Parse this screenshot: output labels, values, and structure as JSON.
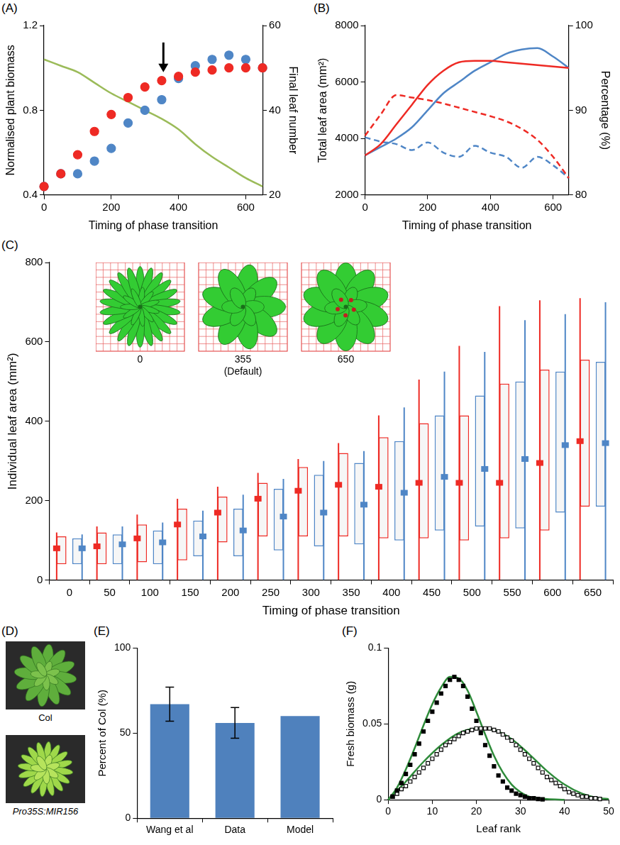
{
  "chart_data": [
    {
      "panel": "(A)",
      "type": "scatter",
      "x_label": "Timing of phase transition",
      "y_label": "Normalised plant biomass",
      "y2_label": "Final leaf number",
      "xlim": [
        0,
        650
      ],
      "xticks": [
        0,
        200,
        400,
        600
      ],
      "ylim": [
        0.4,
        1.2
      ],
      "yticks": [
        0.4,
        0.8,
        1.2
      ],
      "y2lim": [
        20,
        60
      ],
      "y2ticks": [
        20,
        40,
        60
      ],
      "grid": false,
      "x": [
        0,
        50,
        100,
        150,
        200,
        250,
        300,
        350,
        400,
        450,
        500,
        550,
        600,
        650
      ],
      "series": [
        {
          "color": "#ee2a24",
          "marker": "circle",
          "values": [
            0.44,
            0.5,
            0.59,
            0.7,
            0.78,
            0.86,
            0.91,
            0.94,
            0.96,
            0.98,
            0.99,
            1.0,
            1.0,
            1.0
          ]
        },
        {
          "color": "#4f86c6",
          "marker": "circle",
          "values": [
            0.44,
            0.5,
            0.5,
            0.56,
            0.62,
            0.74,
            0.8,
            0.85,
            0.95,
            1.01,
            1.04,
            1.06,
            1.04,
            1.0
          ]
        },
        {
          "type": "line",
          "axis": "y2",
          "color": "#9bbb59",
          "line_style": "solid",
          "values": [
            52,
            50.5,
            49,
            46.5,
            44,
            42,
            40,
            38,
            35.5,
            32,
            29,
            26.5,
            24,
            22
          ]
        }
      ],
      "arrow": {
        "x": 355,
        "y_from": 1.12,
        "y_to": 0.98
      }
    },
    {
      "panel": "(B)",
      "type": "line",
      "x_label": "Timing of phase transition",
      "y_label": "Total leaf area (mm²)",
      "y2_label": "Percentage (%)",
      "xlim": [
        0,
        650
      ],
      "xticks": [
        0,
        200,
        400,
        600
      ],
      "ylim": [
        2000,
        8000
      ],
      "yticks": [
        2000,
        4000,
        6000,
        8000
      ],
      "y2lim": [
        80,
        100
      ],
      "y2ticks": [
        80,
        90,
        100
      ],
      "grid": false,
      "x": [
        0,
        50,
        100,
        150,
        200,
        250,
        300,
        350,
        400,
        450,
        500,
        550,
        600,
        650
      ],
      "series": [
        {
          "color": "#ee2a24",
          "line_style": "solid",
          "values": [
            3400,
            3800,
            4500,
            5200,
            5900,
            6400,
            6700,
            6750,
            6750,
            6700,
            6650,
            6600,
            6550,
            6500
          ]
        },
        {
          "color": "#4f86c6",
          "line_style": "solid",
          "values": [
            3400,
            3700,
            4000,
            4400,
            5000,
            5600,
            6000,
            6400,
            6700,
            7000,
            7150,
            7200,
            6900,
            6500
          ]
        },
        {
          "color": "#ee2a24",
          "line_style": "dashed",
          "axis": "y2",
          "values": [
            87,
            89.5,
            91.8,
            91.5,
            91.2,
            90.8,
            90.3,
            89.8,
            89.3,
            88.7,
            87.8,
            86.5,
            84.5,
            82
          ]
        },
        {
          "color": "#4f86c6",
          "line_style": "dashed",
          "axis": "y2",
          "values": [
            86.8,
            86.3,
            86,
            85.3,
            86.2,
            85,
            84.5,
            85.8,
            85,
            84.5,
            83.2,
            84.5,
            83.5,
            82
          ]
        }
      ]
    },
    {
      "panel": "(C)",
      "type": "boxplot",
      "x_label": "Timing of phase transition",
      "y_label": "Individual leaf area (mm²)",
      "categories": [
        0,
        50,
        100,
        150,
        200,
        250,
        300,
        350,
        400,
        450,
        500,
        550,
        600,
        650
      ],
      "ylim": [
        0,
        800
      ],
      "yticks": [
        0,
        200,
        400,
        600,
        800
      ],
      "grid": false,
      "series": [
        {
          "color": "#ee2a24",
          "min": [
            0,
            0,
            0,
            0,
            0,
            0,
            0,
            0,
            0,
            0,
            0,
            0,
            0,
            0
          ],
          "q1": [
            40,
            40,
            45,
            50,
            95,
            110,
            110,
            110,
            105,
            105,
            100,
            105,
            125,
            185
          ],
          "median": [
            80,
            85,
            105,
            140,
            170,
            205,
            225,
            240,
            235,
            245,
            245,
            245,
            295,
            350
          ],
          "q3": [
            110,
            120,
            140,
            180,
            210,
            245,
            285,
            320,
            360,
            395,
            415,
            495,
            530,
            555
          ],
          "max": [
            120,
            135,
            165,
            205,
            235,
            270,
            305,
            345,
            415,
            505,
            590,
            690,
            705,
            710
          ]
        },
        {
          "color": "#4f86c6",
          "min": [
            0,
            0,
            0,
            0,
            0,
            0,
            0,
            0,
            0,
            0,
            0,
            0,
            0,
            0
          ],
          "q1": [
            40,
            40,
            40,
            60,
            60,
            75,
            85,
            90,
            100,
            125,
            135,
            130,
            170,
            185
          ],
          "median": [
            80,
            90,
            95,
            110,
            125,
            160,
            170,
            190,
            220,
            260,
            280,
            305,
            340,
            345
          ],
          "q3": [
            105,
            115,
            125,
            150,
            180,
            230,
            265,
            295,
            350,
            415,
            465,
            500,
            525,
            550
          ],
          "max": [
            115,
            135,
            145,
            175,
            215,
            255,
            300,
            325,
            435,
            525,
            575,
            655,
            670,
            700
          ]
        }
      ],
      "insets": [
        {
          "label": "0"
        },
        {
          "label": "355",
          "note": "(Default)"
        },
        {
          "label": "650"
        }
      ]
    },
    {
      "panel": "(E)",
      "type": "bar",
      "y_label": "Percent of Col (%)",
      "categories": [
        "Wang et al",
        "Data",
        "Model"
      ],
      "values": [
        67,
        56,
        60
      ],
      "errors": [
        10,
        9,
        null
      ],
      "color": "#4f81bd",
      "ylim": [
        0,
        100
      ],
      "yticks": [
        0,
        50,
        100
      ],
      "grid": false
    },
    {
      "panel": "(F)",
      "type": "scatter",
      "x_label": "Leaf rank",
      "y_label": "Fresh biomass (g)",
      "xlim": [
        0,
        50
      ],
      "xticks": [
        0,
        10,
        20,
        30,
        40,
        50
      ],
      "ylim": [
        0,
        0.1
      ],
      "yticks": [
        0,
        0.05,
        0.1
      ],
      "grid": false,
      "series": [
        {
          "color": "#000000",
          "marker": "filled_square",
          "x": [
            1,
            2,
            3,
            4,
            5,
            6,
            7,
            8,
            9,
            10,
            11,
            12,
            13,
            14,
            15,
            16,
            17,
            18,
            19,
            20,
            21,
            22,
            23,
            24,
            25,
            26,
            27,
            28,
            29,
            30,
            31,
            32,
            33,
            34,
            35
          ],
          "values": [
            0.002,
            0.006,
            0.011,
            0.017,
            0.023,
            0.03,
            0.037,
            0.045,
            0.052,
            0.058,
            0.064,
            0.07,
            0.075,
            0.079,
            0.081,
            0.079,
            0.075,
            0.068,
            0.06,
            0.052,
            0.044,
            0.036,
            0.029,
            0.022,
            0.016,
            0.012,
            0.008,
            0.006,
            0.004,
            0.003,
            0.002,
            0.001,
            0.001,
            0.0005,
            0.0003
          ]
        },
        {
          "color": "#000000",
          "marker": "open_square",
          "x": [
            1,
            2,
            3,
            4,
            5,
            6,
            7,
            8,
            9,
            10,
            11,
            12,
            13,
            14,
            15,
            16,
            17,
            18,
            19,
            20,
            21,
            22,
            23,
            24,
            25,
            26,
            27,
            28,
            29,
            30,
            31,
            32,
            33,
            34,
            35,
            36,
            37,
            38,
            39,
            40,
            41,
            42,
            43,
            44,
            45,
            46,
            47,
            48
          ],
          "values": [
            0.002,
            0.004,
            0.007,
            0.009,
            0.012,
            0.015,
            0.018,
            0.021,
            0.024,
            0.027,
            0.03,
            0.033,
            0.036,
            0.038,
            0.04,
            0.042,
            0.044,
            0.045,
            0.046,
            0.047,
            0.047,
            0.047,
            0.047,
            0.046,
            0.045,
            0.043,
            0.041,
            0.039,
            0.036,
            0.033,
            0.03,
            0.027,
            0.024,
            0.021,
            0.018,
            0.015,
            0.013,
            0.011,
            0.009,
            0.007,
            0.005,
            0.004,
            0.003,
            0.002,
            0.002,
            0.001,
            0.001,
            0.0005
          ]
        },
        {
          "type": "line",
          "color": "#2e8b3a",
          "line_style": "solid",
          "x": [
            0,
            2,
            4,
            6,
            8,
            10,
            12,
            14,
            16,
            18,
            20,
            22,
            24,
            26,
            28,
            30,
            32,
            34,
            36,
            40
          ],
          "values": [
            0,
            0.008,
            0.02,
            0.034,
            0.049,
            0.063,
            0.074,
            0.081,
            0.08,
            0.072,
            0.058,
            0.043,
            0.029,
            0.018,
            0.01,
            0.005,
            0.002,
            0.001,
            0.0005,
            0
          ]
        },
        {
          "type": "line",
          "color": "#2e8b3a",
          "line_style": "solid",
          "x": [
            0,
            4,
            8,
            12,
            16,
            20,
            24,
            28,
            32,
            36,
            40,
            44,
            48,
            50
          ],
          "values": [
            0,
            0.012,
            0.025,
            0.036,
            0.044,
            0.047,
            0.046,
            0.04,
            0.03,
            0.019,
            0.01,
            0.004,
            0.001,
            0.0005
          ]
        }
      ]
    }
  ],
  "panel_D": {
    "panel": "(D)",
    "images": [
      {
        "label": "Col"
      },
      {
        "label": "Pro35S:MIR156"
      }
    ]
  }
}
